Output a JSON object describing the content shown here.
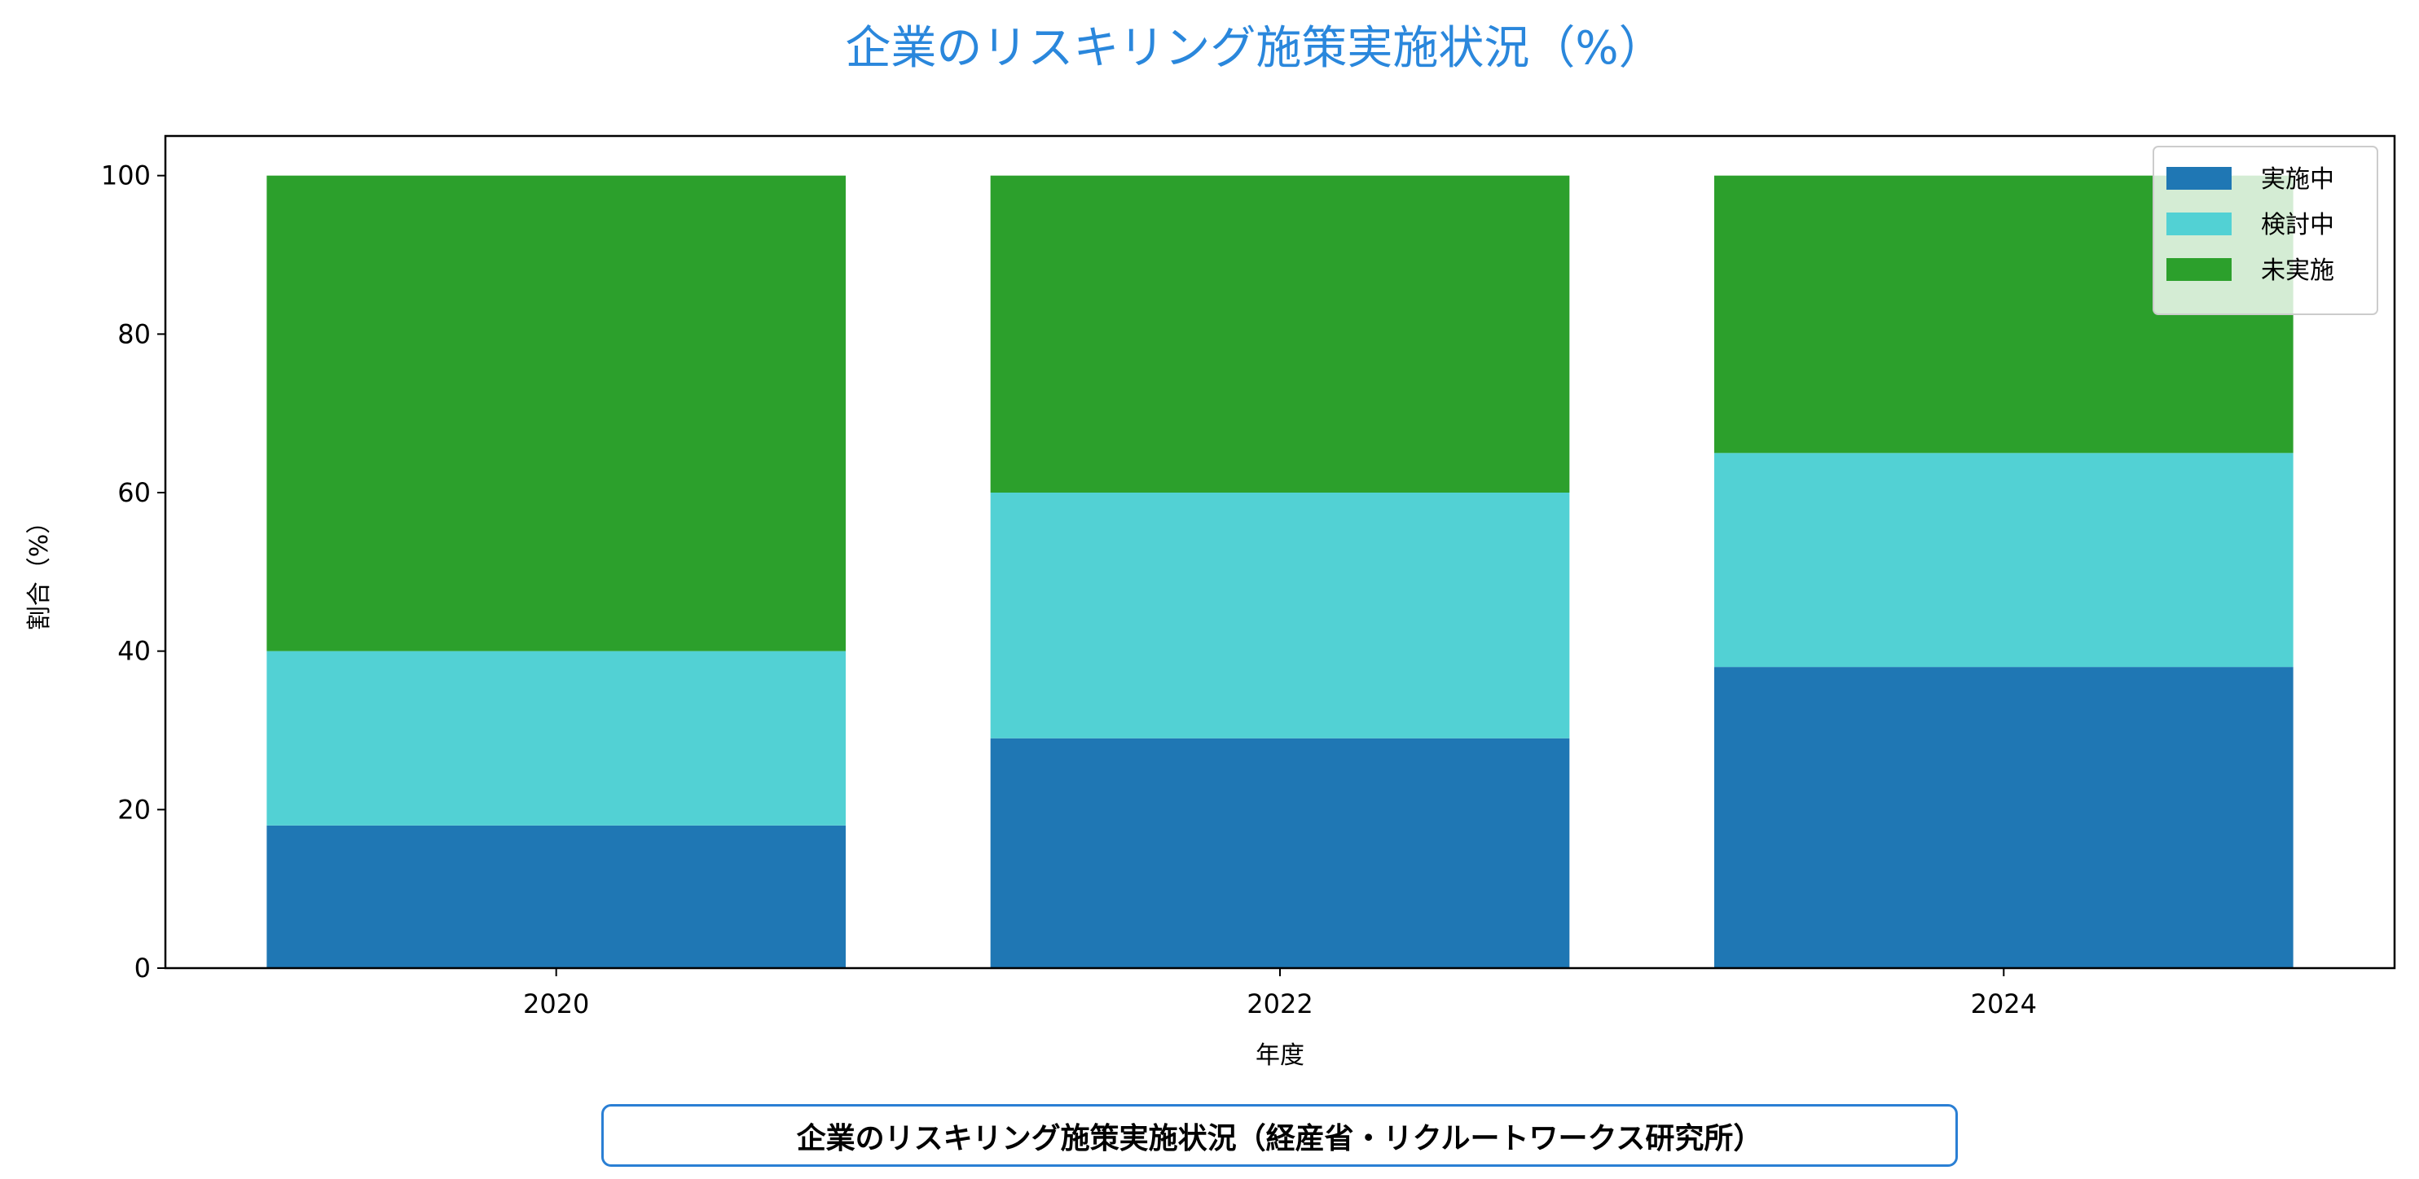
{
  "chart_data": {
    "type": "bar",
    "stacked": true,
    "title": "企業のリスキリング施策実施状況（%）",
    "title_color": "#2a87dc",
    "xlabel": "年度",
    "ylabel": "割合（%）",
    "categories": [
      "2020",
      "2022",
      "2024"
    ],
    "series": [
      {
        "name": "実施中",
        "values": [
          18,
          29,
          38
        ],
        "color": "#1f77b4"
      },
      {
        "name": "検討中",
        "values": [
          22,
          31,
          27
        ],
        "color": "#52d1d4"
      },
      {
        "name": "未実施",
        "values": [
          60,
          40,
          35
        ],
        "color": "#2ca02c"
      }
    ],
    "ylim": [
      0,
      105
    ],
    "yticks": [
      0,
      20,
      40,
      60,
      80,
      100
    ],
    "grid": false,
    "legend_position": "top-right"
  },
  "footer": {
    "caption": "企業のリスキリング施策実施状況（経産省・リクルートワークス研究所）"
  }
}
